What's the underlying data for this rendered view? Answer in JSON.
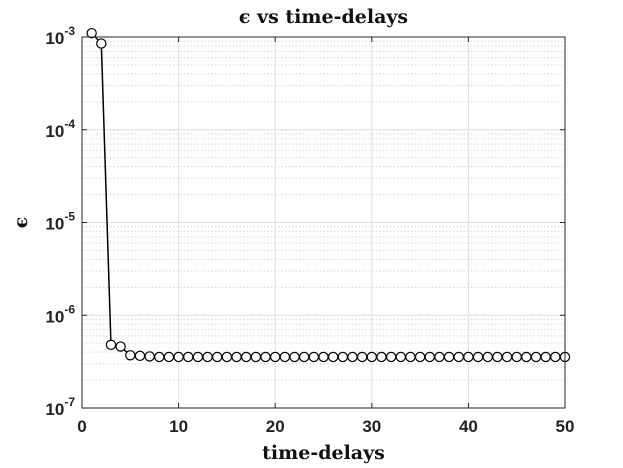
{
  "chart_data": {
    "type": "line",
    "title": "ϵ vs time-delays",
    "xlabel": "time-delays",
    "ylabel": "ϵ",
    "xlim": [
      0,
      50
    ],
    "ylim": [
      1e-07,
      0.001
    ],
    "yscale": "log",
    "grid": true,
    "minor_grid": true,
    "x_ticks": [
      0,
      10,
      20,
      30,
      40,
      50
    ],
    "y_ticks": [
      {
        "value": 1e-07,
        "base": "10",
        "exp": "-7"
      },
      {
        "value": 1e-06,
        "base": "10",
        "exp": "-6"
      },
      {
        "value": 1e-05,
        "base": "10",
        "exp": "-5"
      },
      {
        "value": 0.0001,
        "base": "10",
        "exp": "-4"
      },
      {
        "value": 0.001,
        "base": "10",
        "exp": "-3"
      }
    ],
    "series": [
      {
        "marker": "circle",
        "color": "#000000",
        "marker_fill": "#ffffff",
        "x": [
          1,
          2,
          3,
          4,
          5,
          6,
          7,
          8,
          9,
          10,
          11,
          12,
          13,
          14,
          15,
          16,
          17,
          18,
          19,
          20,
          21,
          22,
          23,
          24,
          25,
          26,
          27,
          28,
          29,
          30,
          31,
          32,
          33,
          34,
          35,
          36,
          37,
          38,
          39,
          40,
          41,
          42,
          43,
          44,
          45,
          46,
          47,
          48,
          49,
          50
        ],
        "y": [
          0.0011,
          0.00085,
          4.8e-07,
          4.6e-07,
          3.7e-07,
          3.65e-07,
          3.6e-07,
          3.55e-07,
          3.55e-07,
          3.55e-07,
          3.55e-07,
          3.55e-07,
          3.55e-07,
          3.55e-07,
          3.55e-07,
          3.55e-07,
          3.55e-07,
          3.55e-07,
          3.55e-07,
          3.55e-07,
          3.55e-07,
          3.55e-07,
          3.55e-07,
          3.55e-07,
          3.55e-07,
          3.55e-07,
          3.55e-07,
          3.55e-07,
          3.55e-07,
          3.55e-07,
          3.55e-07,
          3.55e-07,
          3.55e-07,
          3.55e-07,
          3.55e-07,
          3.55e-07,
          3.55e-07,
          3.55e-07,
          3.55e-07,
          3.55e-07,
          3.55e-07,
          3.55e-07,
          3.55e-07,
          3.55e-07,
          3.55e-07,
          3.55e-07,
          3.55e-07,
          3.55e-07,
          3.55e-07,
          3.55e-07
        ]
      }
    ]
  }
}
